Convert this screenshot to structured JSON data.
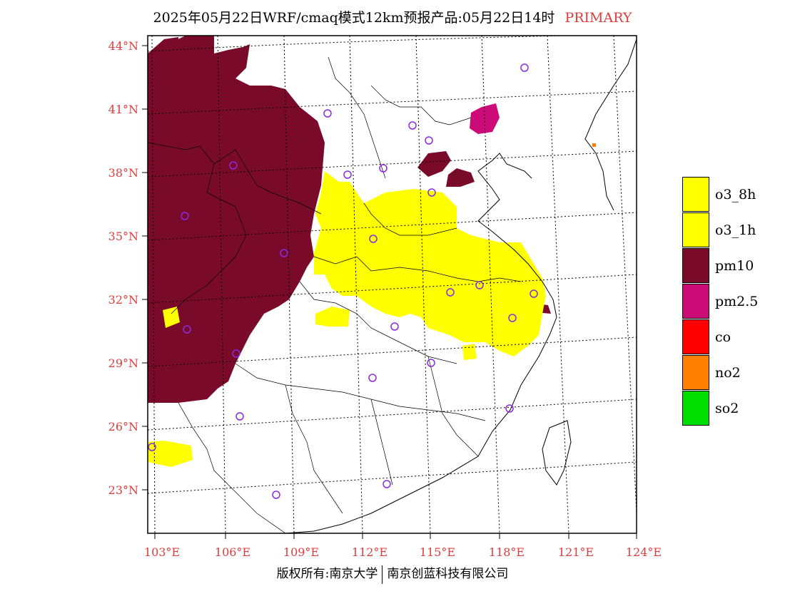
{
  "header": {
    "title": "2025年05月22日WRF/cmaq模式12km预报产品:05月22日14时",
    "tag": "PRIMARY",
    "tag_color": "#e03c3c"
  },
  "axes": {
    "lat_labels": [
      "44°N",
      "41°N",
      "38°N",
      "35°N",
      "32°N",
      "29°N",
      "26°N",
      "23°N"
    ],
    "lon_labels": [
      "103°E",
      "106°E",
      "109°E",
      "112°E",
      "115°E",
      "118°E",
      "121°E",
      "124°E"
    ],
    "label_color": "#e03c3c"
  },
  "legend": {
    "items": [
      {
        "label": "o3_8h",
        "color": "#ffff00"
      },
      {
        "label": "o3_1h",
        "color": "#ffff00"
      },
      {
        "label": "pm10",
        "color": "#7a0a2a"
      },
      {
        "label": "pm2.5",
        "color": "#cc0a78"
      },
      {
        "label": "co",
        "color": "#ff0000"
      },
      {
        "label": "no2",
        "color": "#ff7f00"
      },
      {
        "label": "so2",
        "color": "#00dd00"
      }
    ]
  },
  "footer": {
    "left": "版权所有:南京大学",
    "right": "南京创蓝科技有限公司"
  },
  "map": {
    "pollutant_colors": {
      "pm10": "#7a0a2a",
      "o3": "#ffff00",
      "pm25": "#cc0a78",
      "no2": "#ff7f00"
    },
    "station_marker": "circle-icon",
    "station_color": "#8a2be2"
  }
}
